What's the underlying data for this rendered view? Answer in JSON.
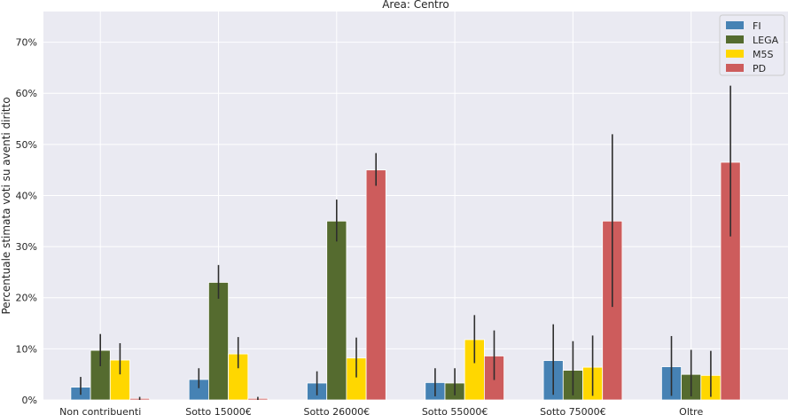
{
  "chart_data": {
    "type": "bar",
    "title": "Area: Centro",
    "xlabel": "",
    "ylabel": "Percentuale stimata voti su aventi diritto",
    "categories": [
      "Non contribuenti",
      "Sotto 15000€",
      "Sotto 26000€",
      "Sotto 55000€",
      "Sotto 75000€",
      "Oltre"
    ],
    "ylim": [
      0,
      76
    ],
    "yticks": [
      0,
      10,
      20,
      30,
      40,
      50,
      60,
      70
    ],
    "ytick_labels": [
      "0%",
      "10%",
      "20%",
      "30%",
      "40%",
      "50%",
      "60%",
      "70%"
    ],
    "grid": true,
    "legend_position": "top-right",
    "series": [
      {
        "name": "FI",
        "color": "#4682b4",
        "values": [
          2.5,
          4.0,
          3.3,
          3.4,
          7.7,
          6.5
        ],
        "err_low": [
          1.0,
          2.3,
          0.9,
          0.7,
          1.0,
          0.8
        ],
        "err_high": [
          4.5,
          6.2,
          5.6,
          6.2,
          14.8,
          12.5
        ]
      },
      {
        "name": "LEGA",
        "color": "#556b2f",
        "values": [
          9.7,
          23.0,
          35.0,
          3.3,
          5.8,
          5.0
        ],
        "err_low": [
          6.6,
          19.8,
          31.0,
          0.9,
          0.9,
          0.7
        ],
        "err_high": [
          12.9,
          26.4,
          39.2,
          6.2,
          11.5,
          9.8
        ]
      },
      {
        "name": "M5S",
        "color": "#ffd700",
        "values": [
          7.8,
          9.0,
          8.2,
          11.8,
          6.4,
          4.8
        ],
        "err_low": [
          5.0,
          6.2,
          4.4,
          7.2,
          0.8,
          0.6
        ],
        "err_high": [
          11.1,
          12.3,
          12.2,
          16.6,
          12.6,
          9.6
        ]
      },
      {
        "name": "PD",
        "color": "#cd5c5c",
        "values": [
          0.3,
          0.3,
          45.0,
          8.6,
          35.0,
          46.5
        ],
        "err_low": [
          0.0,
          0.0,
          41.9,
          3.9,
          18.2,
          32.0
        ],
        "err_high": [
          0.6,
          0.6,
          48.3,
          13.6,
          52.0,
          61.5
        ]
      }
    ]
  }
}
